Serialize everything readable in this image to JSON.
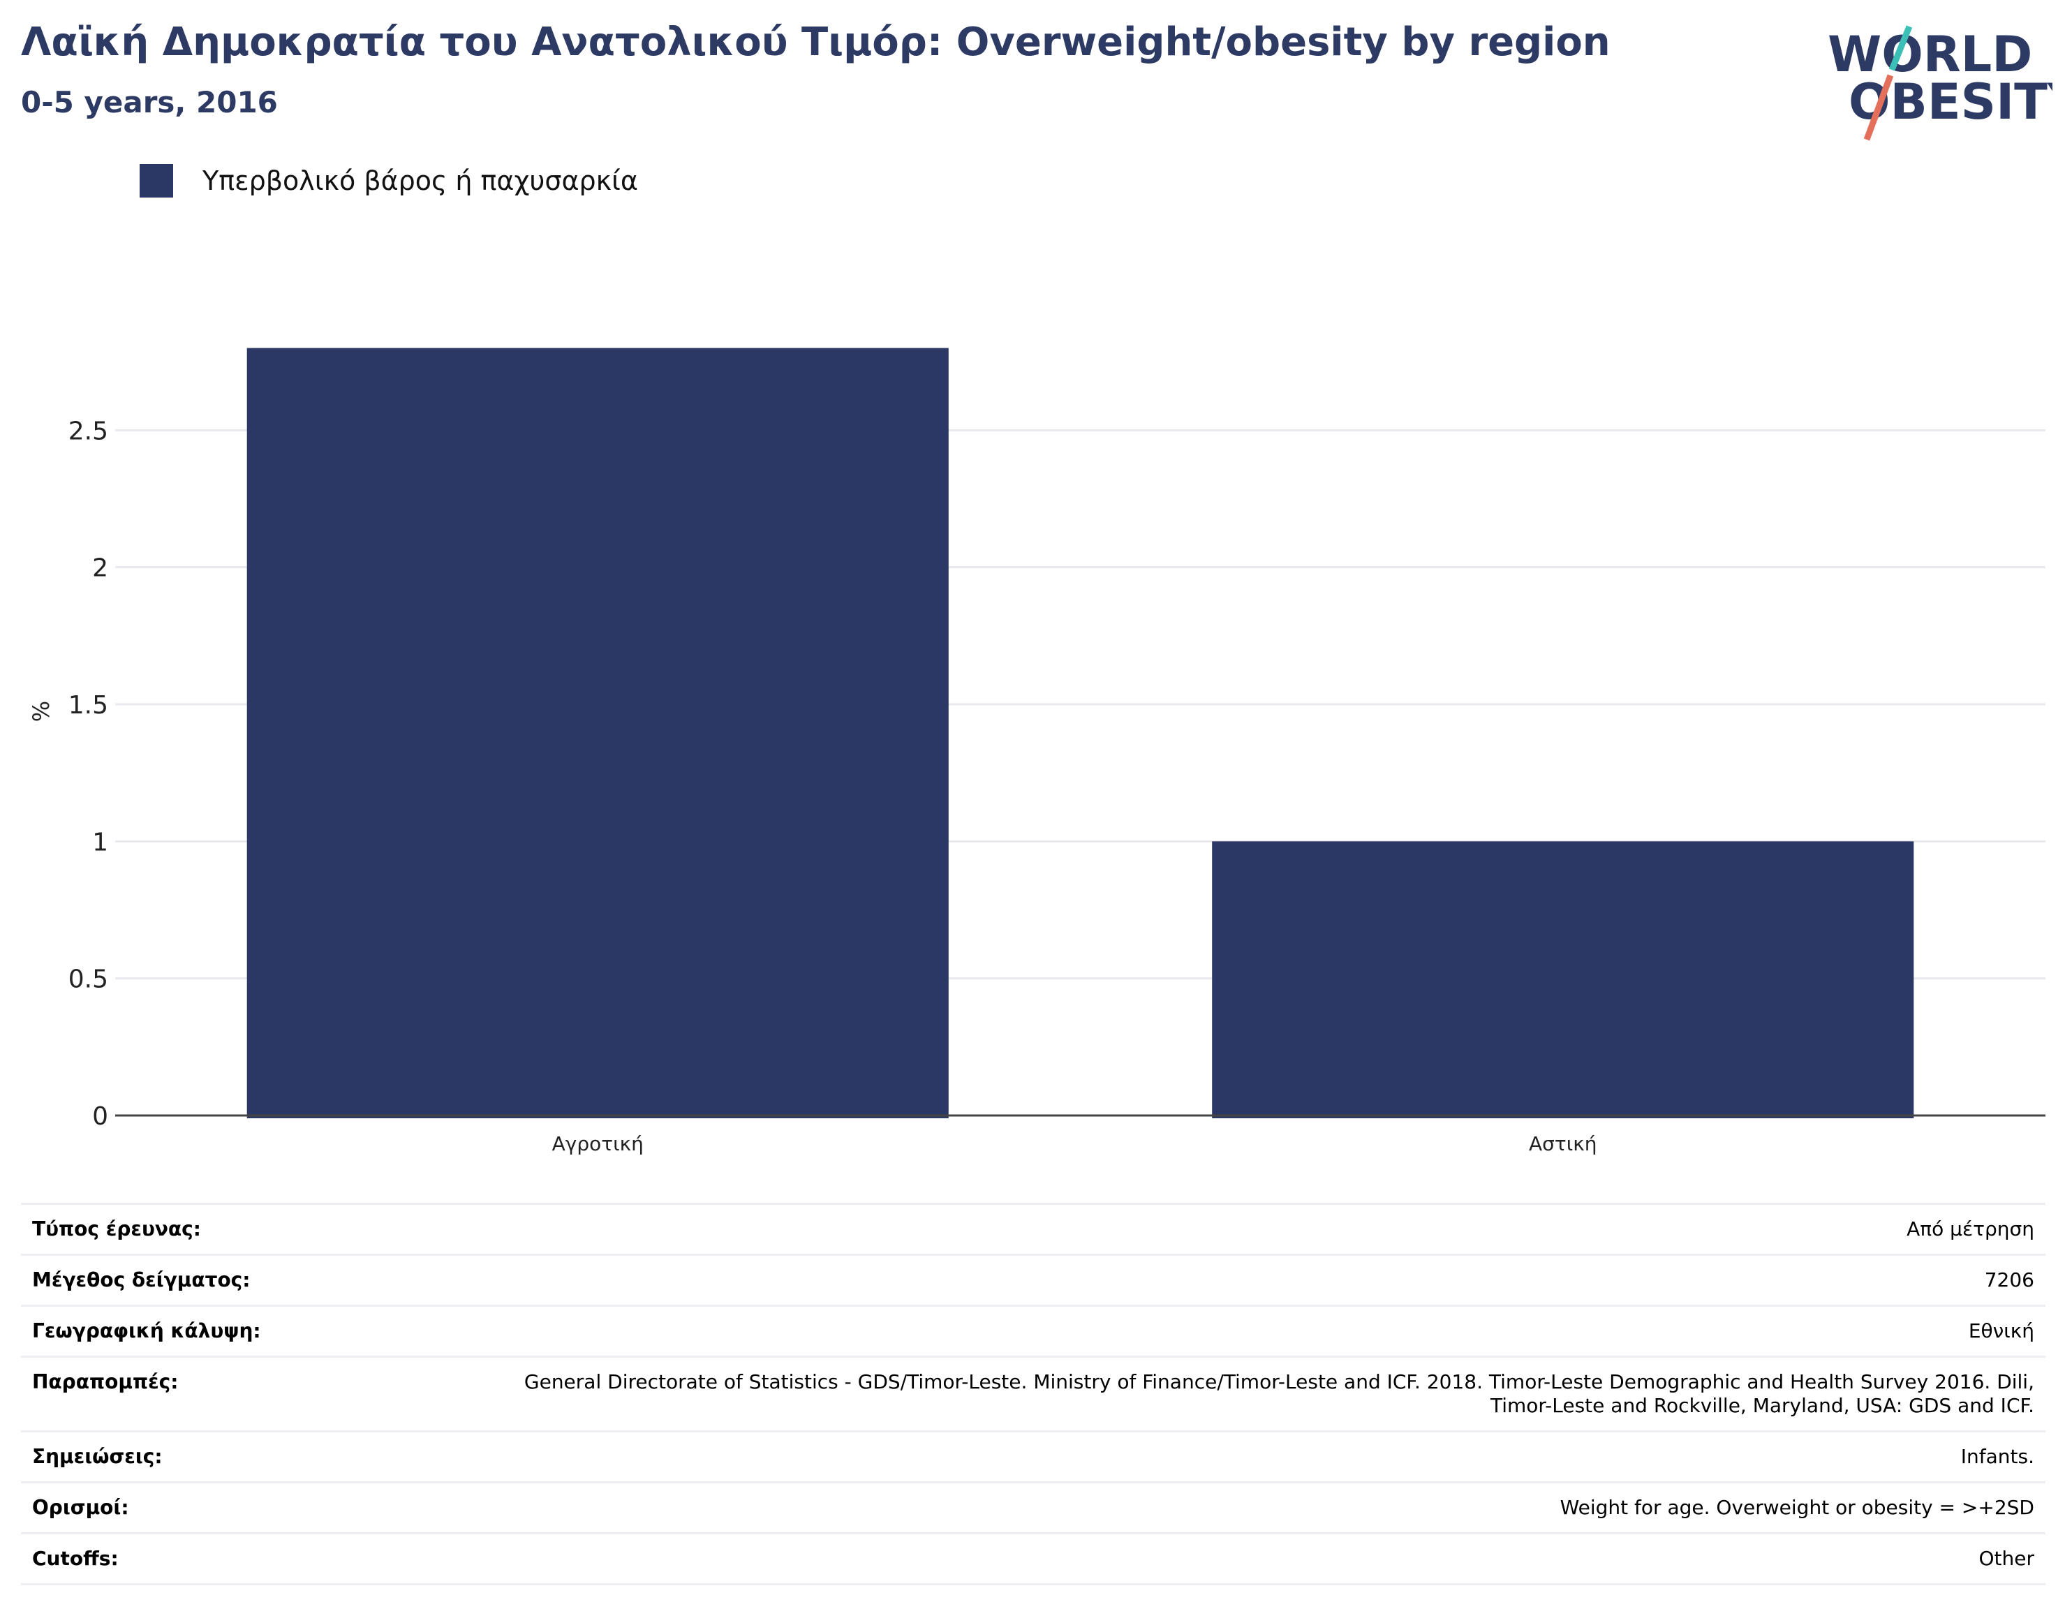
{
  "header": {
    "title": "Λαϊκή Δημοκρατία του Ανατολικού Τιμόρ: Overweight/obesity by region",
    "subtitle": "0-5 years, 2016"
  },
  "logo": {
    "line1": "WORLD",
    "line2": "OBESITY",
    "colors": {
      "text": "#2c3a64",
      "slash_top": "#3bbfb6",
      "slash_bottom": "#e4705c"
    }
  },
  "legend": {
    "items": [
      {
        "label": "Υπερβολικό βάρος ή παχυσαρκία",
        "color": "#2b3764"
      }
    ]
  },
  "chart_data": {
    "type": "bar",
    "categories": [
      "Αγροτική",
      "Αστική"
    ],
    "series": [
      {
        "name": "Υπερβολικό βάρος ή παχυσαρκία",
        "values": [
          2.8,
          1.0
        ],
        "color": "#2b3764"
      }
    ],
    "ylabel": "%",
    "xlabel": "",
    "ylim": [
      0,
      3.0
    ],
    "yticks": [
      0,
      0.5,
      1,
      1.5,
      2,
      2.5
    ],
    "ytick_labels": [
      "0",
      "0.5",
      "1",
      "1.5",
      "2",
      "2.5"
    ],
    "grid": true,
    "legend_position": "top-left"
  },
  "details": [
    {
      "key": "Τύπος έρευνας:",
      "value": "Από μέτρηση"
    },
    {
      "key": "Μέγεθος δείγματος:",
      "value": "7206"
    },
    {
      "key": "Γεωγραφική κάλυψη:",
      "value": "Εθνική"
    },
    {
      "key": "Παραπομπές:",
      "value": "General Directorate of Statistics - GDS/Timor-Leste. Ministry of Finance/Timor-Leste and ICF. 2018. Timor-Leste Demographic and Health Survey 2016. Dili, Timor-Leste and Rockville, Maryland, USA: GDS and ICF."
    },
    {
      "key": "Σημειώσεις:",
      "value": "Infants."
    },
    {
      "key": "Ορισμοί:",
      "value": "Weight for age. Overweight or obesity = >+2SD"
    },
    {
      "key": "Cutoffs:",
      "value": "Other"
    }
  ]
}
